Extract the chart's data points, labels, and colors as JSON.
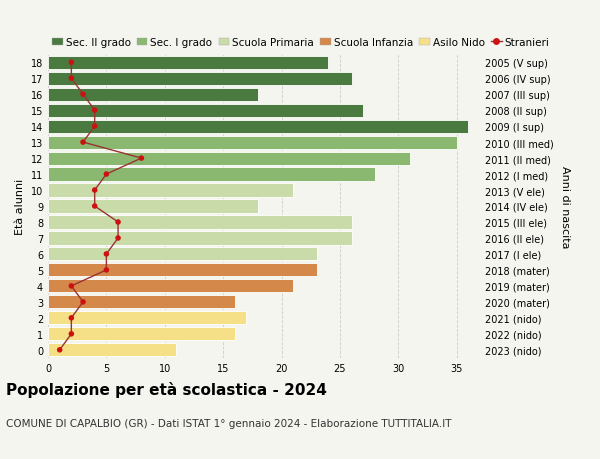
{
  "ages": [
    0,
    1,
    2,
    3,
    4,
    5,
    6,
    7,
    8,
    9,
    10,
    11,
    12,
    13,
    14,
    15,
    16,
    17,
    18
  ],
  "years": [
    "2023 (nido)",
    "2022 (nido)",
    "2021 (nido)",
    "2020 (mater)",
    "2019 (mater)",
    "2018 (mater)",
    "2017 (I ele)",
    "2016 (II ele)",
    "2015 (III ele)",
    "2014 (IV ele)",
    "2013 (V ele)",
    "2012 (I med)",
    "2011 (II med)",
    "2010 (III med)",
    "2009 (I sup)",
    "2008 (II sup)",
    "2007 (III sup)",
    "2006 (IV sup)",
    "2005 (V sup)"
  ],
  "bar_values": [
    11,
    16,
    17,
    16,
    21,
    23,
    23,
    26,
    26,
    18,
    21,
    28,
    31,
    35,
    36,
    27,
    18,
    26,
    24
  ],
  "bar_colors": [
    "#f5e088",
    "#f5e088",
    "#f5e088",
    "#d4884a",
    "#d4884a",
    "#d4884a",
    "#c8dba8",
    "#c8dba8",
    "#c8dba8",
    "#c8dba8",
    "#c8dba8",
    "#8ab870",
    "#8ab870",
    "#8ab870",
    "#4a7a40",
    "#4a7a40",
    "#4a7a40",
    "#4a7a40",
    "#4a7a40"
  ],
  "stranieri_values": [
    1,
    2,
    2,
    3,
    2,
    5,
    5,
    6,
    6,
    4,
    4,
    5,
    8,
    3,
    4,
    4,
    3,
    2,
    2
  ],
  "xlim": [
    0,
    37
  ],
  "ylim": [
    -0.5,
    18.5
  ],
  "ylabel_left": "Età alunni",
  "ylabel_right": "Anni di nascita",
  "title": "Popolazione per età scolastica - 2024",
  "subtitle": "COMUNE DI CAPALBIO (GR) - Dati ISTAT 1° gennaio 2024 - Elaborazione TUTTITALIA.IT",
  "legend_labels": [
    "Sec. II grado",
    "Sec. I grado",
    "Scuola Primaria",
    "Scuola Infanzia",
    "Asilo Nido",
    "Stranieri"
  ],
  "legend_colors": [
    "#4a7a40",
    "#8ab870",
    "#c8dba8",
    "#d4884a",
    "#f5e088",
    "#cc1111"
  ],
  "bar_height": 0.82,
  "grid_color": "#cccccc",
  "background_color": "#f5f5f0",
  "stranieri_line_color": "#993333",
  "stranieri_dot_color": "#cc1111",
  "title_fontsize": 11,
  "subtitle_fontsize": 7.5,
  "tick_fontsize": 7,
  "label_fontsize": 8,
  "legend_fontsize": 7.5,
  "xticks": [
    0,
    5,
    10,
    15,
    20,
    25,
    30,
    35
  ]
}
